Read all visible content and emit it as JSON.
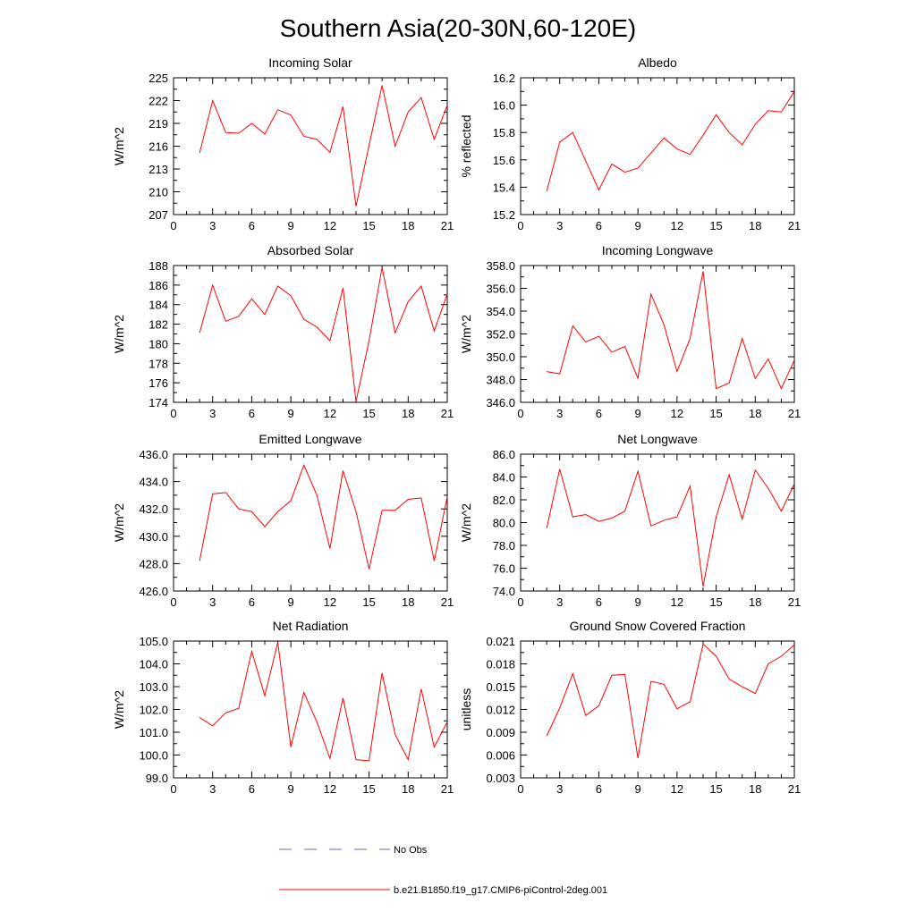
{
  "title": "Southern Asia(20-30N,60-120E)",
  "x_ticks": [
    "0",
    "3",
    "6",
    "9",
    "12",
    "15",
    "18",
    "21"
  ],
  "legend": {
    "obs_label": "No Obs",
    "obs_color": "#6666cc",
    "model_label": "b.e21.B1850.f19_g17.CMIP6-piControl-2deg.001",
    "model_color": "#ff0000"
  },
  "chart_data": [
    {
      "type": "line",
      "title": "Incoming Solar",
      "ylabel": "W/m^2",
      "xlim": [
        0,
        21
      ],
      "ylim": [
        207,
        225
      ],
      "yticks": [
        "207",
        "210",
        "213",
        "216",
        "219",
        "222",
        "225"
      ],
      "x": [
        2,
        3,
        4,
        5,
        6,
        7,
        8,
        9,
        10,
        11,
        12,
        13,
        14,
        15,
        16,
        17,
        18,
        19,
        20,
        21
      ],
      "values": [
        215.1,
        222.0,
        217.8,
        217.7,
        219.0,
        217.6,
        220.8,
        220.1,
        217.3,
        216.9,
        215.2,
        221.2,
        208.1,
        216.1,
        224.0,
        216.0,
        220.5,
        222.4,
        216.9,
        221.4
      ]
    },
    {
      "type": "line",
      "title": "Albedo",
      "ylabel": "% reflected",
      "xlim": [
        0,
        21
      ],
      "ylim": [
        15.2,
        16.2
      ],
      "yticks": [
        "15.2",
        "15.4",
        "15.6",
        "15.8",
        "16.0",
        "16.2"
      ],
      "x": [
        2,
        3,
        4,
        5,
        6,
        7,
        8,
        9,
        10,
        11,
        12,
        13,
        14,
        15,
        16,
        17,
        18,
        19,
        20,
        21
      ],
      "values": [
        15.37,
        15.73,
        15.8,
        15.59,
        15.38,
        15.57,
        15.51,
        15.54,
        15.65,
        15.76,
        15.68,
        15.64,
        15.78,
        15.93,
        15.8,
        15.71,
        15.86,
        15.96,
        15.95,
        16.1
      ]
    },
    {
      "type": "line",
      "title": "Absorbed Solar",
      "ylabel": "W/m^2",
      "xlim": [
        0,
        21
      ],
      "ylim": [
        174,
        188
      ],
      "yticks": [
        "174",
        "176",
        "178",
        "180",
        "182",
        "184",
        "186",
        "188"
      ],
      "x": [
        2,
        3,
        4,
        5,
        6,
        7,
        8,
        9,
        10,
        11,
        12,
        13,
        14,
        15,
        16,
        17,
        18,
        19,
        20,
        21
      ],
      "values": [
        181.1,
        186.0,
        182.3,
        182.8,
        184.6,
        183.0,
        185.9,
        184.9,
        182.5,
        181.7,
        180.3,
        185.7,
        174.1,
        180.3,
        187.8,
        181.1,
        184.3,
        185.9,
        181.3,
        185.1
      ]
    },
    {
      "type": "line",
      "title": "Incoming Longwave",
      "ylabel": "W/m^2",
      "xlim": [
        0,
        21
      ],
      "ylim": [
        346.0,
        358.0
      ],
      "yticks": [
        "346.0",
        "348.0",
        "350.0",
        "352.0",
        "354.0",
        "356.0",
        "358.0"
      ],
      "x": [
        2,
        3,
        4,
        5,
        6,
        7,
        8,
        9,
        10,
        11,
        12,
        13,
        14,
        15,
        16,
        17,
        18,
        19,
        20,
        21
      ],
      "values": [
        348.7,
        348.5,
        352.7,
        351.3,
        351.8,
        350.4,
        350.9,
        348.1,
        355.5,
        352.8,
        348.7,
        351.6,
        357.5,
        347.2,
        347.7,
        351.6,
        348.1,
        349.8,
        347.2,
        349.7
      ]
    },
    {
      "type": "line",
      "title": "Emitted Longwave",
      "ylabel": "W/m^2",
      "xlim": [
        0,
        21
      ],
      "ylim": [
        426.0,
        436.0
      ],
      "yticks": [
        "426.0",
        "428.0",
        "430.0",
        "432.0",
        "434.0",
        "436.0"
      ],
      "x": [
        2,
        3,
        4,
        5,
        6,
        7,
        8,
        9,
        10,
        11,
        12,
        13,
        14,
        15,
        16,
        17,
        18,
        19,
        20,
        21
      ],
      "values": [
        428.2,
        433.1,
        433.2,
        432.0,
        431.8,
        430.7,
        431.8,
        432.6,
        435.2,
        433.0,
        429.1,
        434.8,
        431.8,
        427.6,
        431.9,
        431.9,
        432.7,
        432.8,
        428.2,
        432.9
      ]
    },
    {
      "type": "line",
      "title": "Net Longwave",
      "ylabel": "W/m^2",
      "xlim": [
        0,
        21
      ],
      "ylim": [
        74.0,
        86.0
      ],
      "yticks": [
        "74.0",
        "76.0",
        "78.0",
        "80.0",
        "82.0",
        "84.0",
        "86.0"
      ],
      "x": [
        2,
        3,
        4,
        5,
        6,
        7,
        8,
        9,
        10,
        11,
        12,
        13,
        14,
        15,
        16,
        17,
        18,
        19,
        20,
        21
      ],
      "values": [
        79.5,
        84.7,
        80.5,
        80.7,
        80.1,
        80.4,
        81.0,
        84.5,
        79.7,
        80.2,
        80.5,
        83.2,
        74.4,
        80.5,
        84.2,
        80.3,
        84.6,
        83.0,
        81.0,
        83.4
      ]
    },
    {
      "type": "line",
      "title": "Net Radiation",
      "ylabel": "W/m^2",
      "xlim": [
        0,
        21
      ],
      "ylim": [
        99.0,
        105.0
      ],
      "yticks": [
        "99.0",
        "100.0",
        "101.0",
        "102.0",
        "103.0",
        "104.0",
        "105.0"
      ],
      "x": [
        2,
        3,
        4,
        5,
        6,
        7,
        8,
        9,
        10,
        11,
        12,
        13,
        14,
        15,
        16,
        17,
        18,
        19,
        20,
        21
      ],
      "values": [
        101.65,
        101.28,
        101.85,
        102.05,
        104.55,
        102.6,
        104.95,
        100.35,
        102.75,
        101.45,
        99.85,
        102.5,
        99.8,
        99.75,
        103.6,
        100.9,
        99.8,
        102.9,
        100.35,
        101.45
      ]
    },
    {
      "type": "line",
      "title": "Ground Snow Covered Fraction",
      "ylabel": "unitless",
      "xlim": [
        0,
        21
      ],
      "ylim": [
        0.003,
        0.021
      ],
      "yticks": [
        "0.003",
        "0.006",
        "0.009",
        "0.012",
        "0.015",
        "0.018",
        "0.021"
      ],
      "x": [
        2,
        3,
        4,
        5,
        6,
        7,
        8,
        9,
        10,
        11,
        12,
        13,
        14,
        15,
        16,
        17,
        18,
        19,
        20,
        21
      ],
      "values": [
        0.0085,
        0.0122,
        0.0167,
        0.0112,
        0.0125,
        0.0165,
        0.0166,
        0.0056,
        0.0157,
        0.0153,
        0.0121,
        0.013,
        0.0206,
        0.019,
        0.016,
        0.015,
        0.0141,
        0.018,
        0.019,
        0.0205
      ]
    }
  ]
}
